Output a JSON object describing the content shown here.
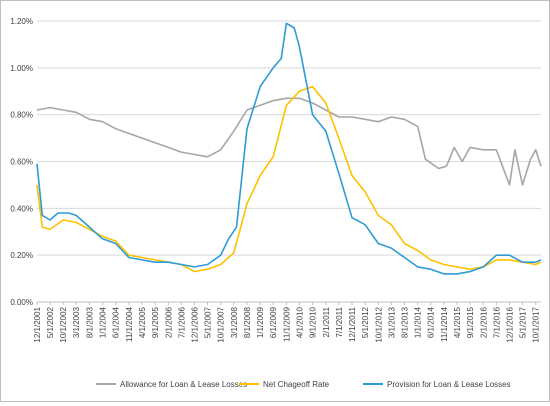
{
  "chart_data": {
    "type": "line",
    "title": "",
    "xlabel": "",
    "ylabel": "",
    "ylim": [
      0,
      1.2
    ],
    "y_unit": "%",
    "y_ticks": [
      "0.00%",
      "0.20%",
      "0.40%",
      "0.60%",
      "0.80%",
      "1.00%",
      "1.20%"
    ],
    "grid": "horizontal",
    "legend_position": "bottom",
    "x_tick_labels": [
      "12/1/2001",
      "5/1/2002",
      "10/1/2002",
      "3/1/2003",
      "8/1/2003",
      "1/1/2004",
      "6/1/2004",
      "11/1/2004",
      "4/1/2005",
      "9/1/2005",
      "2/1/2006",
      "7/1/2006",
      "12/1/2006",
      "5/1/2007",
      "10/1/2007",
      "3/1/2008",
      "8/1/2008",
      "1/1/2009",
      "6/1/2009",
      "11/1/2009",
      "4/1/2010",
      "9/1/2010",
      "2/1/2011",
      "7/1/2011",
      "12/1/2011",
      "5/1/2012",
      "10/1/2012",
      "3/1/2013",
      "8/1/2013",
      "1/1/2014",
      "6/1/2014",
      "11/1/2014",
      "4/1/2015",
      "9/1/2015",
      "2/1/2016",
      "7/1/2016",
      "12/1/2016",
      "5/1/2017",
      "10/1/2017"
    ],
    "series": [
      {
        "name": "Allowance for Loan & Lease Losses",
        "color": "#a6a6a6",
        "points": [
          [
            "2001-12-01",
            0.82
          ],
          [
            "2002-05-01",
            0.83
          ],
          [
            "2002-10-01",
            0.82
          ],
          [
            "2003-03-01",
            0.81
          ],
          [
            "2003-08-01",
            0.78
          ],
          [
            "2004-01-01",
            0.77
          ],
          [
            "2004-06-01",
            0.74
          ],
          [
            "2004-11-01",
            0.72
          ],
          [
            "2005-04-01",
            0.7
          ],
          [
            "2005-09-01",
            0.68
          ],
          [
            "2006-02-01",
            0.66
          ],
          [
            "2006-07-01",
            0.64
          ],
          [
            "2006-12-01",
            0.63
          ],
          [
            "2007-05-01",
            0.62
          ],
          [
            "2007-10-01",
            0.65
          ],
          [
            "2008-03-01",
            0.73
          ],
          [
            "2008-08-01",
            0.82
          ],
          [
            "2009-01-01",
            0.84
          ],
          [
            "2009-06-01",
            0.86
          ],
          [
            "2009-11-01",
            0.87
          ],
          [
            "2010-04-01",
            0.87
          ],
          [
            "2010-09-01",
            0.85
          ],
          [
            "2011-02-01",
            0.82
          ],
          [
            "2011-07-01",
            0.79
          ],
          [
            "2011-12-01",
            0.79
          ],
          [
            "2012-05-01",
            0.78
          ],
          [
            "2012-10-01",
            0.77
          ],
          [
            "2013-03-01",
            0.79
          ],
          [
            "2013-08-01",
            0.78
          ],
          [
            "2014-01-01",
            0.75
          ],
          [
            "2014-04-01",
            0.61
          ],
          [
            "2014-09-01",
            0.57
          ],
          [
            "2014-12-01",
            0.58
          ],
          [
            "2015-03-01",
            0.66
          ],
          [
            "2015-06-01",
            0.6
          ],
          [
            "2015-09-01",
            0.66
          ],
          [
            "2016-02-01",
            0.65
          ],
          [
            "2016-07-01",
            0.65
          ],
          [
            "2016-12-01",
            0.5
          ],
          [
            "2017-02-01",
            0.65
          ],
          [
            "2017-05-01",
            0.5
          ],
          [
            "2017-08-01",
            0.61
          ],
          [
            "2017-10-01",
            0.65
          ],
          [
            "2017-12-01",
            0.58
          ]
        ]
      },
      {
        "name": "Net Chageoff Rate",
        "color": "#ffc000",
        "points": [
          [
            "2001-12-01",
            0.5
          ],
          [
            "2002-02-01",
            0.32
          ],
          [
            "2002-05-01",
            0.31
          ],
          [
            "2002-10-01",
            0.35
          ],
          [
            "2003-03-01",
            0.34
          ],
          [
            "2003-08-01",
            0.31
          ],
          [
            "2004-01-01",
            0.28
          ],
          [
            "2004-06-01",
            0.26
          ],
          [
            "2004-11-01",
            0.2
          ],
          [
            "2005-04-01",
            0.19
          ],
          [
            "2005-09-01",
            0.18
          ],
          [
            "2006-02-01",
            0.17
          ],
          [
            "2006-07-01",
            0.16
          ],
          [
            "2006-12-01",
            0.13
          ],
          [
            "2007-05-01",
            0.14
          ],
          [
            "2007-10-01",
            0.16
          ],
          [
            "2008-03-01",
            0.21
          ],
          [
            "2008-08-01",
            0.42
          ],
          [
            "2009-01-01",
            0.54
          ],
          [
            "2009-06-01",
            0.62
          ],
          [
            "2009-11-01",
            0.84
          ],
          [
            "2010-04-01",
            0.9
          ],
          [
            "2010-09-01",
            0.92
          ],
          [
            "2011-02-01",
            0.85
          ],
          [
            "2011-07-01",
            0.7
          ],
          [
            "2011-12-01",
            0.54
          ],
          [
            "2012-05-01",
            0.47
          ],
          [
            "2012-10-01",
            0.37
          ],
          [
            "2013-03-01",
            0.33
          ],
          [
            "2013-08-01",
            0.25
          ],
          [
            "2014-01-01",
            0.22
          ],
          [
            "2014-06-01",
            0.18
          ],
          [
            "2014-11-01",
            0.16
          ],
          [
            "2015-04-01",
            0.15
          ],
          [
            "2015-09-01",
            0.14
          ],
          [
            "2016-02-01",
            0.15
          ],
          [
            "2016-07-01",
            0.18
          ],
          [
            "2016-12-01",
            0.18
          ],
          [
            "2017-05-01",
            0.17
          ],
          [
            "2017-10-01",
            0.16
          ],
          [
            "2017-12-01",
            0.17
          ]
        ]
      },
      {
        "name": "Provision for Loan & Lease Losses",
        "color": "#2e9bd6",
        "points": [
          [
            "2001-12-01",
            0.59
          ],
          [
            "2002-02-01",
            0.37
          ],
          [
            "2002-05-01",
            0.35
          ],
          [
            "2002-08-01",
            0.38
          ],
          [
            "2002-12-01",
            0.38
          ],
          [
            "2003-03-01",
            0.37
          ],
          [
            "2003-08-01",
            0.32
          ],
          [
            "2004-01-01",
            0.27
          ],
          [
            "2004-06-01",
            0.25
          ],
          [
            "2004-11-01",
            0.19
          ],
          [
            "2005-04-01",
            0.18
          ],
          [
            "2005-09-01",
            0.17
          ],
          [
            "2006-02-01",
            0.17
          ],
          [
            "2006-07-01",
            0.16
          ],
          [
            "2006-12-01",
            0.15
          ],
          [
            "2007-05-01",
            0.16
          ],
          [
            "2007-10-01",
            0.2
          ],
          [
            "2008-01-01",
            0.27
          ],
          [
            "2008-04-01",
            0.32
          ],
          [
            "2008-08-01",
            0.74
          ],
          [
            "2009-01-01",
            0.92
          ],
          [
            "2009-06-01",
            1.0
          ],
          [
            "2009-09-01",
            1.04
          ],
          [
            "2009-11-01",
            1.19
          ],
          [
            "2010-02-01",
            1.17
          ],
          [
            "2010-04-01",
            1.09
          ],
          [
            "2010-09-01",
            0.8
          ],
          [
            "2011-02-01",
            0.73
          ],
          [
            "2011-07-01",
            0.55
          ],
          [
            "2011-12-01",
            0.36
          ],
          [
            "2012-05-01",
            0.33
          ],
          [
            "2012-10-01",
            0.25
          ],
          [
            "2013-03-01",
            0.23
          ],
          [
            "2013-08-01",
            0.19
          ],
          [
            "2014-01-01",
            0.15
          ],
          [
            "2014-06-01",
            0.14
          ],
          [
            "2014-11-01",
            0.12
          ],
          [
            "2015-04-01",
            0.12
          ],
          [
            "2015-09-01",
            0.13
          ],
          [
            "2016-02-01",
            0.15
          ],
          [
            "2016-07-01",
            0.2
          ],
          [
            "2016-12-01",
            0.2
          ],
          [
            "2017-05-01",
            0.17
          ],
          [
            "2017-10-01",
            0.17
          ],
          [
            "2017-12-01",
            0.18
          ]
        ]
      }
    ]
  }
}
